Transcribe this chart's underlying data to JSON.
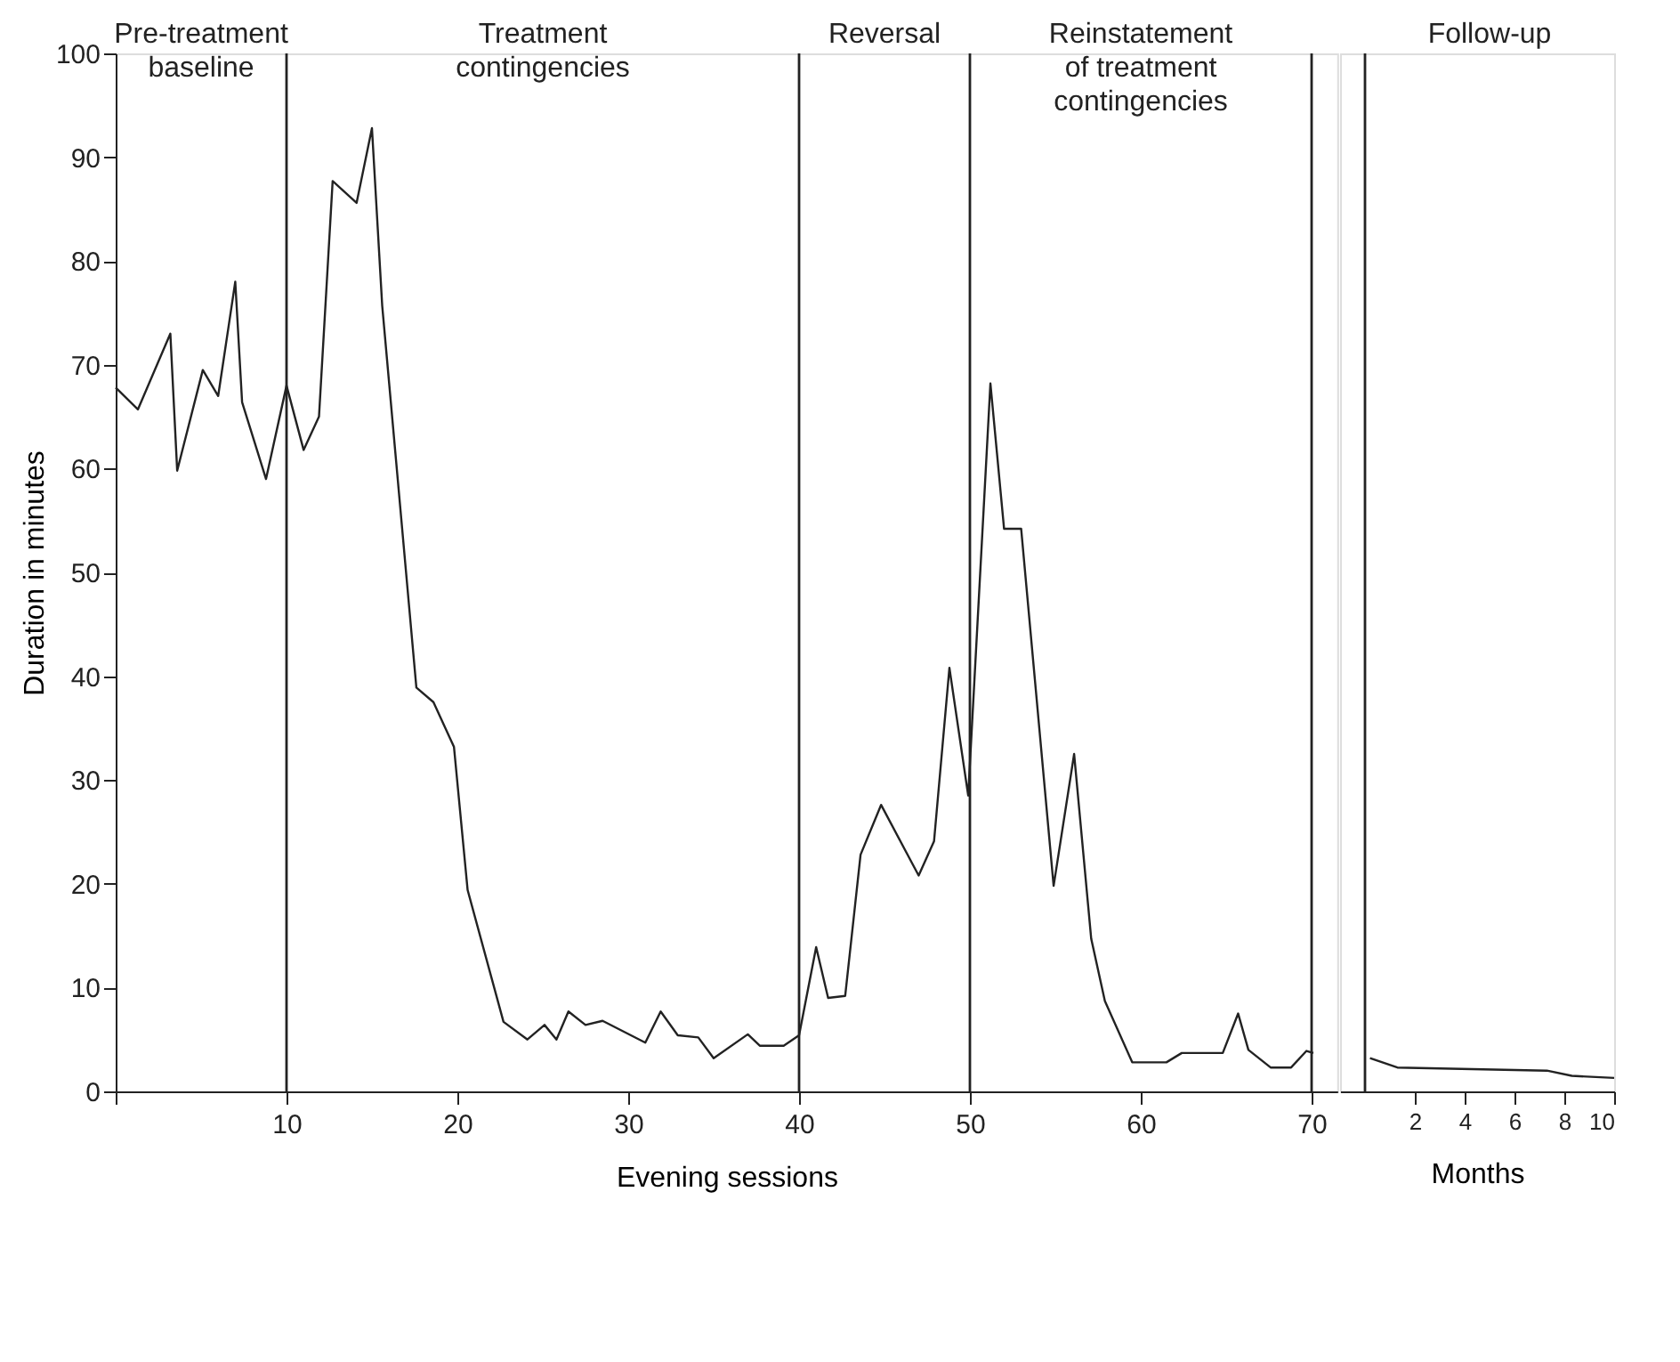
{
  "chart_data": [
    {
      "type": "line",
      "xlabel": "Evening sessions",
      "ylabel": "Duration in minutes",
      "xlim": [
        0,
        71.5
      ],
      "ylim": [
        0,
        100
      ],
      "xticks": [
        {
          "value": 0,
          "label": null
        },
        10,
        20,
        30,
        40,
        50,
        60,
        70
      ],
      "yticks": [
        0,
        10,
        20,
        30,
        40,
        50,
        60,
        70,
        80,
        90,
        100
      ],
      "grid": false,
      "marker": "none",
      "line_style": "solid",
      "series": [
        {
          "color": "#222222",
          "x": [
            0,
            1.3,
            3.2,
            3.6,
            5.1,
            6.0,
            7.0,
            7.4,
            8.8,
            10,
            11,
            11.9,
            12.7,
            14.1,
            15,
            15.6,
            17.6,
            18.6,
            19.8,
            20.6,
            22.7,
            24.1,
            25.1,
            25.8,
            26.5,
            27.5,
            28.5,
            31,
            31.9,
            32.9,
            34.1,
            35,
            37,
            37.7,
            39.1,
            40,
            41,
            41.7,
            42.7,
            43.6,
            44.8,
            47,
            47.9,
            48.8,
            49.9,
            51.2,
            52,
            53,
            54.9,
            56.1,
            57.1,
            57.9,
            59.5,
            61.5,
            62.4,
            64.8,
            65.7,
            66.3,
            67.6,
            68.8,
            69.7,
            70.1
          ],
          "values": [
            67.8,
            65.7,
            73,
            59.8,
            69.5,
            67,
            78,
            66.4,
            59,
            68,
            61.8,
            65,
            87.7,
            85.6,
            92.8,
            75.7,
            38.9,
            37.5,
            33.2,
            19.4,
            6.7,
            5,
            6.4,
            5,
            7.7,
            6.4,
            6.8,
            4.7,
            7.7,
            5.4,
            5.2,
            3.2,
            5.5,
            4.4,
            4.4,
            5.4,
            13.9,
            9,
            9.2,
            22.8,
            27.6,
            20.8,
            24.1,
            40.8,
            28.5,
            68.2,
            54.2,
            54.2,
            19.8,
            32.5,
            14.7,
            8.7,
            2.8,
            2.8,
            3.7,
            3.7,
            7.5,
            4,
            2.3,
            2.3,
            3.9,
            3.7
          ]
        }
      ],
      "ref_lines": [
        {
          "axis": "x",
          "value": 10
        },
        {
          "axis": "x",
          "value": 40
        },
        {
          "axis": "x",
          "value": 50
        },
        {
          "axis": "x",
          "value": 70
        }
      ],
      "annotations": [
        "Pre-treatment\nbaseline",
        "Treatment\ncontingencies",
        "Reversal",
        "Reinstatement\nof treatment\ncontingencies"
      ]
    },
    {
      "type": "line",
      "xlabel": "Months",
      "xlim": [
        -1,
        10
      ],
      "ylim": [
        0,
        100
      ],
      "xticks": [
        2,
        4,
        6,
        8,
        10
      ],
      "tick_labels": "x",
      "grid": false,
      "marker": "none",
      "line_style": "solid",
      "series": [
        {
          "color": "#222222",
          "x": [
            0.2,
            1.3,
            7.3,
            8.3,
            10
          ],
          "values": [
            3.2,
            2.3,
            2.0,
            1.5,
            1.3
          ]
        }
      ],
      "ref_lines": [
        {
          "axis": "x",
          "value": 0
        }
      ],
      "annotations": [
        "Follow-up"
      ]
    }
  ]
}
